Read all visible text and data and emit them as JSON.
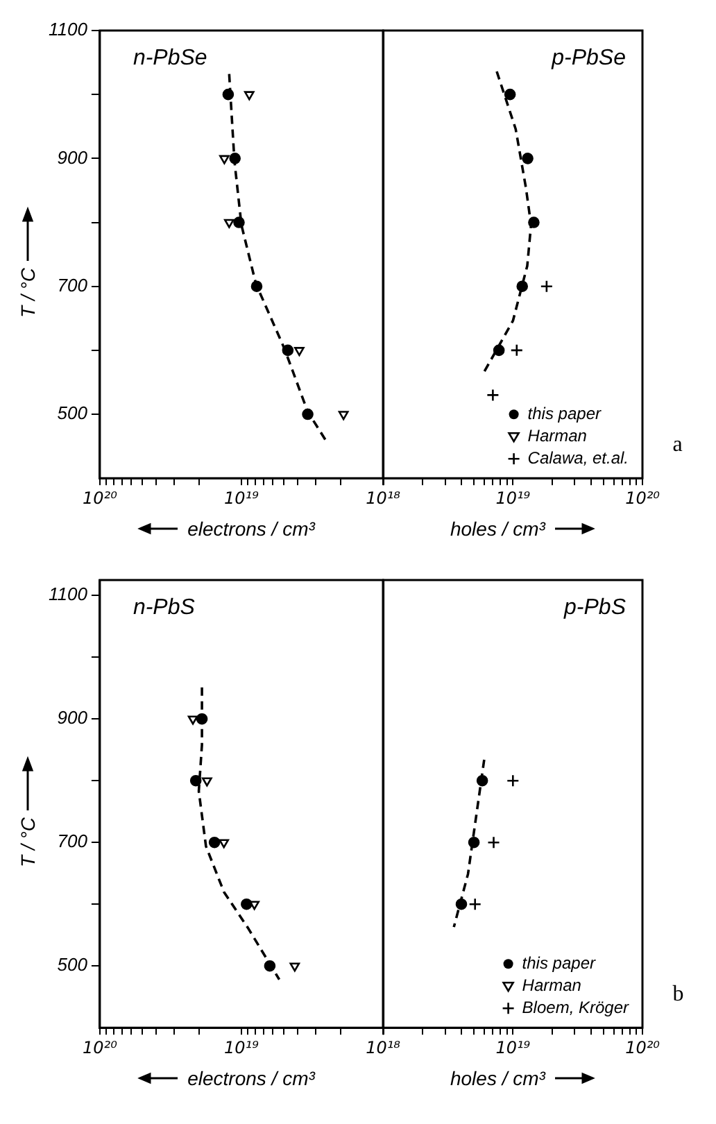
{
  "chart_data": [
    {
      "type": "scatter",
      "title": "n-PbSe",
      "ylabel": "T / °C",
      "xlabel": "electrons / cm³",
      "log": "x",
      "grid": false,
      "xlim": [
        1e+20,
        1e+18
      ],
      "xticks": [
        {
          "value": 1e+20,
          "label": "10²⁰"
        },
        {
          "value": 9e+19,
          "label": null
        },
        {
          "value": 8e+19,
          "label": null
        },
        {
          "value": 7e+19,
          "label": null
        },
        {
          "value": 6e+19,
          "label": null
        },
        {
          "value": 5e+19,
          "label": null
        },
        {
          "value": 4e+19,
          "label": null
        },
        {
          "value": 3e+19,
          "label": null
        },
        {
          "value": 2e+19,
          "label": null
        },
        {
          "value": 1e+19,
          "label": "10¹⁹"
        },
        {
          "value": 9e+18,
          "label": null
        },
        {
          "value": 8e+18,
          "label": null
        },
        {
          "value": 7e+18,
          "label": null
        },
        {
          "value": 6e+18,
          "label": null
        },
        {
          "value": 5e+18,
          "label": null
        },
        {
          "value": 4e+18,
          "label": null
        },
        {
          "value": 3e+18,
          "label": null
        },
        {
          "value": 2e+18,
          "label": null
        },
        {
          "value": 1e+18,
          "label": "10¹⁸"
        }
      ],
      "ylim": [
        400,
        1100
      ],
      "yticks": [
        500,
        {
          "value": 600,
          "label": null
        },
        700,
        {
          "value": 800,
          "label": null
        },
        900,
        {
          "value": 1000,
          "label": null
        },
        1100
      ],
      "series": [
        {
          "color": "#000000",
          "marker": "circle",
          "x": [
            1.24e+19,
            1.11e+19,
            1.04e+19,
            7.8e+18,
            4.7e+18,
            3.4e+18
          ],
          "values": [
            1000,
            900,
            800,
            700,
            600,
            500
          ]
        },
        {
          "color": "#000000",
          "marker": "triangle",
          "x": [
            8.8e+18,
            1.32e+19,
            1.22e+19,
            3.9e+18,
            1.9e+18
          ],
          "values": [
            1000,
            900,
            800,
            600,
            500
          ]
        },
        {
          "type": "line",
          "color": "#000000",
          "marker": "none",
          "line_style": "dashed",
          "x": [
            1.22e+19,
            1.12e+19,
            1e+19,
            7.9e+18,
            5e+18,
            3.4e+18,
            2.5e+18
          ],
          "values": [
            1032,
            896,
            796,
            704,
            604,
            504,
            457
          ]
        }
      ]
    },
    {
      "type": "scatter",
      "title": "p-PbSe",
      "xlabel": "holes / cm³",
      "log": "x",
      "grid": false,
      "legend": "bottom right",
      "tick_labels": "x",
      "annotations": [
        "a"
      ],
      "xlim": [
        1e+18,
        1e+20
      ],
      "xticks": [
        {
          "value": 1e+18,
          "label": null
        },
        {
          "value": 2e+18,
          "label": null
        },
        {
          "value": 3e+18,
          "label": null
        },
        {
          "value": 4e+18,
          "label": null
        },
        {
          "value": 5e+18,
          "label": null
        },
        {
          "value": 6e+18,
          "label": null
        },
        {
          "value": 7e+18,
          "label": null
        },
        {
          "value": 8e+18,
          "label": null
        },
        {
          "value": 9e+18,
          "label": null
        },
        {
          "value": 1e+19,
          "label": "10¹⁹"
        },
        {
          "value": 2e+19,
          "label": null
        },
        {
          "value": 3e+19,
          "label": null
        },
        {
          "value": 4e+19,
          "label": null
        },
        {
          "value": 5e+19,
          "label": null
        },
        {
          "value": 6e+19,
          "label": null
        },
        {
          "value": 7e+19,
          "label": null
        },
        {
          "value": 8e+19,
          "label": null
        },
        {
          "value": 9e+19,
          "label": null
        },
        {
          "value": 1e+20,
          "label": "10²⁰"
        }
      ],
      "ylim": [
        400,
        1100
      ],
      "series": [
        {
          "name": "this paper",
          "color": "#000000",
          "marker": "circle",
          "x": [
            9.5e+18,
            1.3e+19,
            1.45e+19,
            1.18e+19,
            7.8e+18
          ],
          "values": [
            1000,
            900,
            800,
            700,
            600
          ]
        },
        {
          "name": "Harman",
          "color": "#000000",
          "marker": "triangle"
        },
        {
          "name": "Calawa, et.al.",
          "color": "#000000",
          "marker": "cross",
          "x": [
            1.82e+19,
            1.07e+19,
            7e+18
          ],
          "values": [
            700,
            600,
            530
          ]
        },
        {
          "type": "line",
          "color": "#000000",
          "marker": "none",
          "line_style": "dashed",
          "x": [
            7.5e+18,
            1.05e+19,
            1.26e+19,
            1.38e+19,
            1.29e+19,
            1e+19,
            5.8e+18
          ],
          "values": [
            1036,
            946,
            854,
            796,
            732,
            646,
            561
          ]
        }
      ]
    },
    {
      "type": "scatter",
      "title": "n-PbS",
      "ylabel": "T / °C",
      "xlabel": "electrons / cm³",
      "log": "x",
      "grid": false,
      "xlim": [
        1e+20,
        1e+18
      ],
      "xticks": [
        {
          "value": 1e+20,
          "label": "10²⁰"
        },
        {
          "value": 9e+19,
          "label": null
        },
        {
          "value": 8e+19,
          "label": null
        },
        {
          "value": 7e+19,
          "label": null
        },
        {
          "value": 6e+19,
          "label": null
        },
        {
          "value": 5e+19,
          "label": null
        },
        {
          "value": 4e+19,
          "label": null
        },
        {
          "value": 3e+19,
          "label": null
        },
        {
          "value": 2e+19,
          "label": null
        },
        {
          "value": 1e+19,
          "label": "10¹⁹"
        },
        {
          "value": 9e+18,
          "label": null
        },
        {
          "value": 8e+18,
          "label": null
        },
        {
          "value": 7e+18,
          "label": null
        },
        {
          "value": 6e+18,
          "label": null
        },
        {
          "value": 5e+18,
          "label": null
        },
        {
          "value": 4e+18,
          "label": null
        },
        {
          "value": 3e+18,
          "label": null
        },
        {
          "value": 2e+18,
          "label": null
        },
        {
          "value": 1e+18,
          "label": "10¹⁸"
        }
      ],
      "ylim": [
        400,
        1125
      ],
      "yticks": [
        500,
        {
          "value": 600,
          "label": null
        },
        700,
        {
          "value": 800,
          "label": null
        },
        900,
        {
          "value": 1000,
          "label": null
        },
        1100
      ],
      "series": [
        {
          "color": "#000000",
          "marker": "circle",
          "x": [
            1.9e+19,
            2.1e+19,
            1.55e+19,
            9.2e+18,
            6.3e+18
          ],
          "values": [
            900,
            800,
            700,
            600,
            500
          ]
        },
        {
          "color": "#000000",
          "marker": "triangle",
          "x": [
            2.2e+19,
            1.75e+19,
            1.33e+19,
            8.1e+18,
            4.2e+18
          ],
          "values": [
            900,
            800,
            700,
            600,
            500
          ]
        },
        {
          "type": "line",
          "color": "#000000",
          "marker": "none",
          "line_style": "dashed",
          "x": [
            1.9e+19,
            1.9e+19,
            2e+19,
            1.78e+19,
            1.33e+19,
            8.9e+18,
            5.4e+18
          ],
          "values": [
            951,
            858,
            783,
            694,
            620,
            560,
            478
          ]
        }
      ]
    },
    {
      "type": "scatter",
      "title": "p-PbS",
      "xlabel": "holes / cm³",
      "log": "x",
      "grid": false,
      "legend": "bottom right",
      "tick_labels": "x",
      "annotations": [
        "b"
      ],
      "xlim": [
        1e+18,
        1e+20
      ],
      "xticks": [
        {
          "value": 1e+18,
          "label": null
        },
        {
          "value": 2e+18,
          "label": null
        },
        {
          "value": 3e+18,
          "label": null
        },
        {
          "value": 4e+18,
          "label": null
        },
        {
          "value": 5e+18,
          "label": null
        },
        {
          "value": 6e+18,
          "label": null
        },
        {
          "value": 7e+18,
          "label": null
        },
        {
          "value": 8e+18,
          "label": null
        },
        {
          "value": 9e+18,
          "label": null
        },
        {
          "value": 1e+19,
          "label": "10¹⁹"
        },
        {
          "value": 2e+19,
          "label": null
        },
        {
          "value": 3e+19,
          "label": null
        },
        {
          "value": 4e+19,
          "label": null
        },
        {
          "value": 5e+19,
          "label": null
        },
        {
          "value": 6e+19,
          "label": null
        },
        {
          "value": 7e+19,
          "label": null
        },
        {
          "value": 8e+19,
          "label": null
        },
        {
          "value": 9e+19,
          "label": null
        },
        {
          "value": 1e+20,
          "label": "10²⁰"
        }
      ],
      "ylim": [
        400,
        1125
      ],
      "series": [
        {
          "name": "this paper",
          "color": "#000000",
          "marker": "circle",
          "x": [
            5.8e+18,
            5e+18,
            4e+18
          ],
          "values": [
            800,
            700,
            600
          ]
        },
        {
          "name": "Harman",
          "color": "#000000",
          "marker": "triangle"
        },
        {
          "name": "Bloem, Kröger",
          "color": "#000000",
          "marker": "cross",
          "x": [
            1e+19,
            7.1e+18,
            5.1e+18
          ],
          "values": [
            800,
            700,
            600
          ]
        },
        {
          "type": "line",
          "color": "#000000",
          "marker": "none",
          "line_style": "dashed",
          "x": [
            6e+18,
            4.5e+18,
            3.5e+18
          ],
          "values": [
            834,
            649,
            563
          ]
        }
      ]
    }
  ]
}
